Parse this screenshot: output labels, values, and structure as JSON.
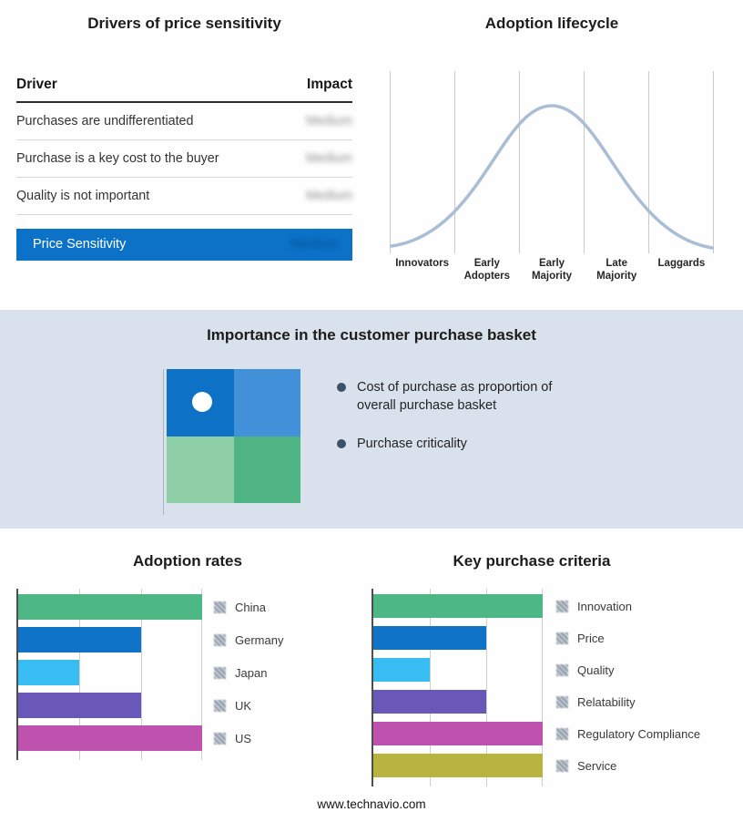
{
  "chart_data": [
    {
      "type": "table",
      "title": "Drivers of price sensitivity",
      "columns": [
        "Driver",
        "Impact"
      ],
      "rows": [
        [
          "Purchases are undifferentiated",
          "Medium"
        ],
        [
          "Purchase is a key cost to the buyer",
          "Medium"
        ],
        [
          "Quality is not important",
          "Medium"
        ],
        [
          "Price Sensitivity",
          "Medium"
        ]
      ],
      "note": "impact values shown blurred"
    },
    {
      "type": "line",
      "title": "Adoption lifecycle",
      "categories": [
        "Innovators",
        "Early Adopters",
        "Early Majority",
        "Late Majority",
        "Laggards"
      ],
      "values": [
        0.1,
        0.55,
        1.0,
        0.55,
        0.1
      ],
      "xlabel": "",
      "ylabel": "",
      "note": "bell curve, no numeric axes, vertical gridlines between stages"
    },
    {
      "type": "bar",
      "title": "Adoption rates",
      "orientation": "horizontal",
      "categories": [
        "China",
        "Germany",
        "Japan",
        "UK",
        "US"
      ],
      "values": [
        3,
        2,
        1,
        2,
        3
      ],
      "xlim": [
        0,
        3
      ],
      "grid": true,
      "legend_position": "right",
      "note": "no numeric tick labels; values estimated from gridlines"
    },
    {
      "type": "bar",
      "title": "Key purchase criteria",
      "orientation": "horizontal",
      "categories": [
        "Innovation",
        "Price",
        "Quality",
        "Relatability",
        "Regulatory Compliance",
        "Service"
      ],
      "values": [
        3,
        2,
        1,
        2,
        3,
        3
      ],
      "xlim": [
        0,
        3
      ],
      "grid": true,
      "legend_position": "right",
      "note": "no numeric tick labels; values estimated from gridlines"
    }
  ],
  "drivers": {
    "title": "Drivers of price sensitivity",
    "columns": {
      "driver": "Driver",
      "impact": "Impact"
    },
    "rows": [
      {
        "driver": "Purchases are undifferentiated",
        "impact": "Medium"
      },
      {
        "driver": "Purchase is a key cost to the buyer",
        "impact": "Medium"
      },
      {
        "driver": "Quality is not important",
        "impact": "Medium"
      }
    ],
    "summary": {
      "label": "Price Sensitivity",
      "impact": "Medium"
    },
    "accent_color": "#0b72c8"
  },
  "lifecycle": {
    "title": "Adoption lifecycle",
    "stages": [
      "Innovators",
      "Early Adopters",
      "Early Majority",
      "Late Majority",
      "Laggards"
    ],
    "curve_color": "#a9bdd4"
  },
  "basket": {
    "title": "Importance in the customer purchase basket",
    "bullets": [
      "Cost of purchase as proportion of overall purchase basket",
      "Purchase criticality"
    ],
    "colors": {
      "top_left": "#0d72c6",
      "top_right": "#4391d8",
      "bottom_left": "#8fcfa8",
      "bottom_right": "#4fb484"
    },
    "band_color": "#d8e1ec"
  },
  "charts": {
    "adoption": {
      "title": "Adoption rates",
      "xmax": 3,
      "bars": [
        {
          "label": "China",
          "value": 3,
          "color": "#4db886"
        },
        {
          "label": "Germany",
          "value": 2,
          "color": "#0f73c8"
        },
        {
          "label": "Japan",
          "value": 1,
          "color": "#38bdf2"
        },
        {
          "label": "UK",
          "value": 2,
          "color": "#6a58b8"
        },
        {
          "label": "US",
          "value": 3,
          "color": "#bf52ae"
        }
      ]
    },
    "criteria": {
      "title": "Key purchase criteria",
      "xmax": 3,
      "bars": [
        {
          "label": "Innovation",
          "value": 3,
          "color": "#4db886"
        },
        {
          "label": "Price",
          "value": 2,
          "color": "#0f73c8"
        },
        {
          "label": "Quality",
          "value": 1,
          "color": "#38bdf2"
        },
        {
          "label": "Relatability",
          "value": 2,
          "color": "#6a58b8"
        },
        {
          "label": "Regulatory Compliance",
          "value": 3,
          "color": "#bf52ae"
        },
        {
          "label": "Service",
          "value": 3,
          "color": "#b9b440"
        }
      ]
    }
  },
  "footer": {
    "url": "www.technavio.com"
  }
}
